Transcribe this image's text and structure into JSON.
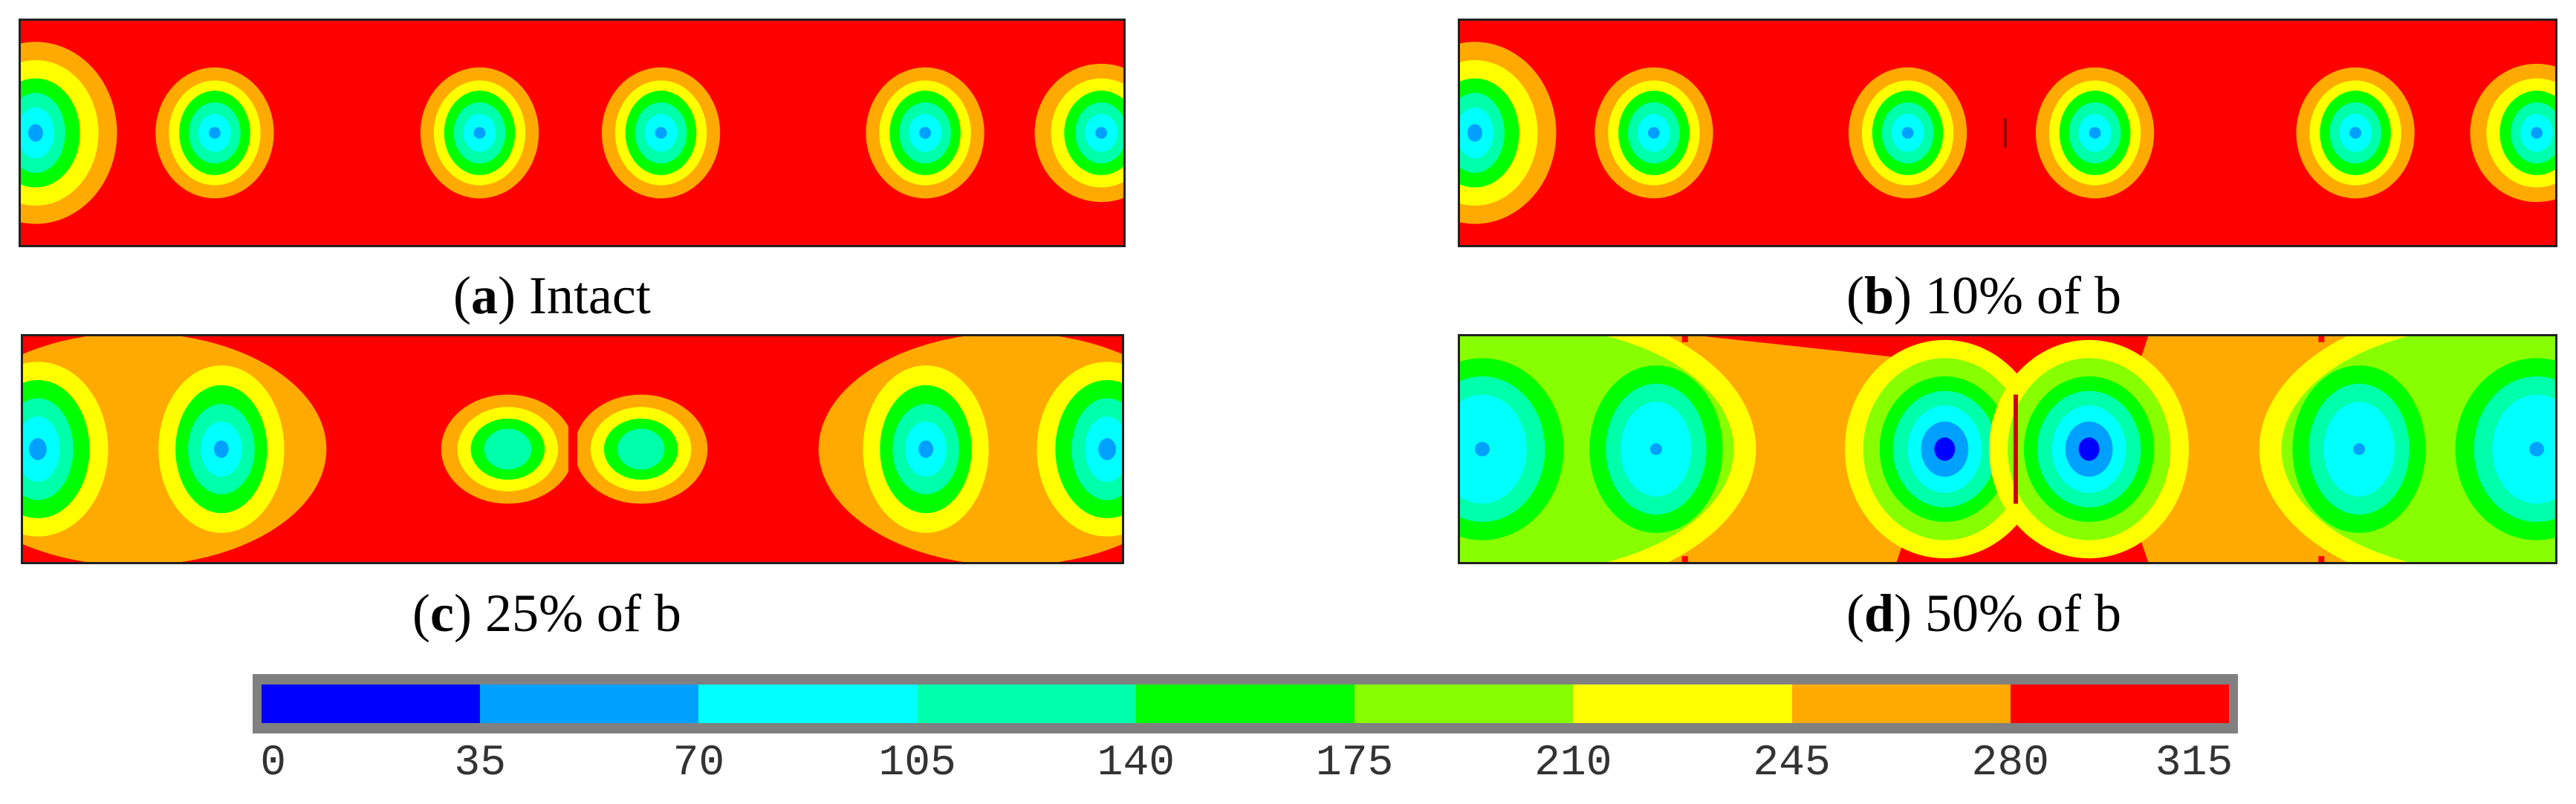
{
  "panels": [
    {
      "id": "a",
      "letter": "a",
      "label": "Intact"
    },
    {
      "id": "b",
      "letter": "b",
      "label": "10% of b"
    },
    {
      "id": "c",
      "letter": "c",
      "label": "25% of b"
    },
    {
      "id": "d",
      "letter": "d",
      "label": "50% of b"
    }
  ],
  "colorbar": {
    "colors": [
      "#0000ff",
      "#00a0ff",
      "#00ffff",
      "#00ffaa",
      "#00ff00",
      "#88ff00",
      "#ffff00",
      "#ffaa00",
      "#ff0000"
    ],
    "ticks": [
      "0",
      "35",
      "70",
      "105",
      "140",
      "175",
      "210",
      "245",
      "280",
      "315"
    ]
  }
}
